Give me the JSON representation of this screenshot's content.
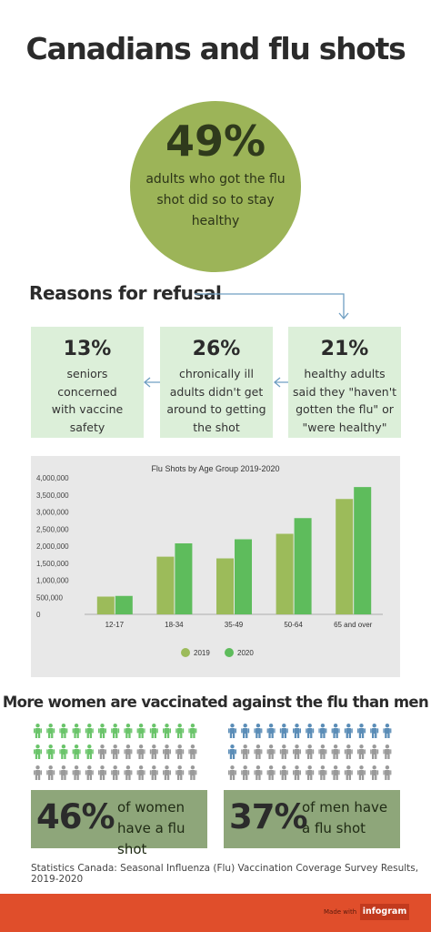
{
  "title": "Canadians and flu shots",
  "hero": {
    "percent": "49%",
    "text": "adults who got the flu shot did so to stay healthy"
  },
  "refusal": {
    "heading": "Reasons for refusal",
    "cards": [
      {
        "percent": "13%",
        "text": "seniors concerned with vaccine safety"
      },
      {
        "percent": "26%",
        "text": "chronically ill adults didn't get around to getting the shot"
      },
      {
        "percent": "21%",
        "text": "healthy adults said they \"haven't gotten the flu\" or \"were healthy\""
      }
    ]
  },
  "chart_data": {
    "type": "bar",
    "title": "Flu Shots by Age Group 2019-2020",
    "categories": [
      "12-17",
      "18-34",
      "35-49",
      "50-64",
      "65 and over"
    ],
    "series": [
      {
        "name": "2019",
        "values": [
          520000,
          1690000,
          1640000,
          2360000,
          3380000
        ]
      },
      {
        "name": "2020",
        "values": [
          540000,
          2080000,
          2200000,
          2820000,
          3730000
        ]
      }
    ],
    "ylim": [
      0,
      4000000
    ],
    "yticks": [
      "0",
      "500,000",
      "1,000,000",
      "1,500,000",
      "2,000,000",
      "2,500,000",
      "3,000,000",
      "3,500,000",
      "4,000,000"
    ],
    "grid": false,
    "legend": "bottom",
    "colors": {
      "2019": "#9cbb5a",
      "2020": "#5ebc5c"
    }
  },
  "gender": {
    "heading": "More women are vaccinated against the flu than men",
    "women": {
      "percent": "46%",
      "label": "of women have a flu shot",
      "filled_fraction": 0.46,
      "color": "#6ac46a"
    },
    "men": {
      "percent": "37%",
      "label": "of men have a flu shot",
      "filled_fraction": 0.37,
      "color": "#5b8db7"
    },
    "empty_color": "#9a9a9a"
  },
  "source": "Statistics Canada: Seasonal Influenza (Flu) Vaccination Coverage Survey Results, 2019-2020",
  "footer": {
    "made_with": "Made with",
    "brand": "infogram"
  }
}
